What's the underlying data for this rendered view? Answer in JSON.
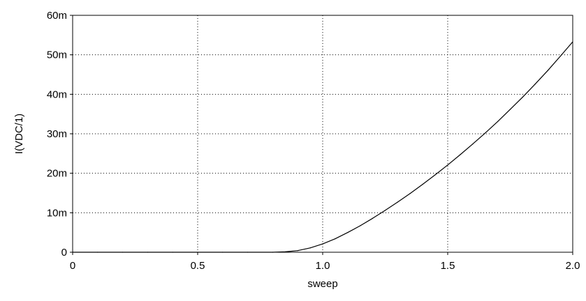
{
  "chart_data": {
    "type": "line",
    "xlabel": "sweep",
    "ylabel": "I(VDC/1)",
    "xlim": [
      0,
      2.0
    ],
    "ylim": [
      0,
      0.06
    ],
    "x_ticks": [
      0,
      0.5,
      1.0,
      1.5,
      2.0
    ],
    "x_tick_labels": [
      "0",
      "0.5",
      "1.0",
      "1.5",
      "2.0"
    ],
    "y_ticks": [
      0,
      0.01,
      0.02,
      0.03,
      0.04,
      0.05,
      0.06
    ],
    "y_tick_labels": [
      "0",
      "10m",
      "20m",
      "30m",
      "40m",
      "50m",
      "60m"
    ],
    "grid": true,
    "legend": "none",
    "series": [
      {
        "color": "#000000",
        "x": [
          0,
          0.1,
          0.2,
          0.3,
          0.4,
          0.5,
          0.6,
          0.7,
          0.8,
          0.85,
          0.9,
          0.95,
          1.0,
          1.05,
          1.1,
          1.15,
          1.2,
          1.25,
          1.3,
          1.35,
          1.4,
          1.45,
          1.5,
          1.55,
          1.6,
          1.65,
          1.7,
          1.75,
          1.8,
          1.85,
          1.9,
          1.95,
          2.0
        ],
        "y": [
          0,
          0,
          0,
          0,
          0,
          0,
          0,
          0,
          0,
          0.0001,
          0.0004,
          0.0011,
          0.0021,
          0.0034,
          0.005,
          0.0067,
          0.0086,
          0.0106,
          0.0127,
          0.0149,
          0.0172,
          0.0196,
          0.0221,
          0.0247,
          0.0274,
          0.0302,
          0.0331,
          0.0362,
          0.0393,
          0.0426,
          0.046,
          0.0496,
          0.0533
        ]
      }
    ]
  }
}
